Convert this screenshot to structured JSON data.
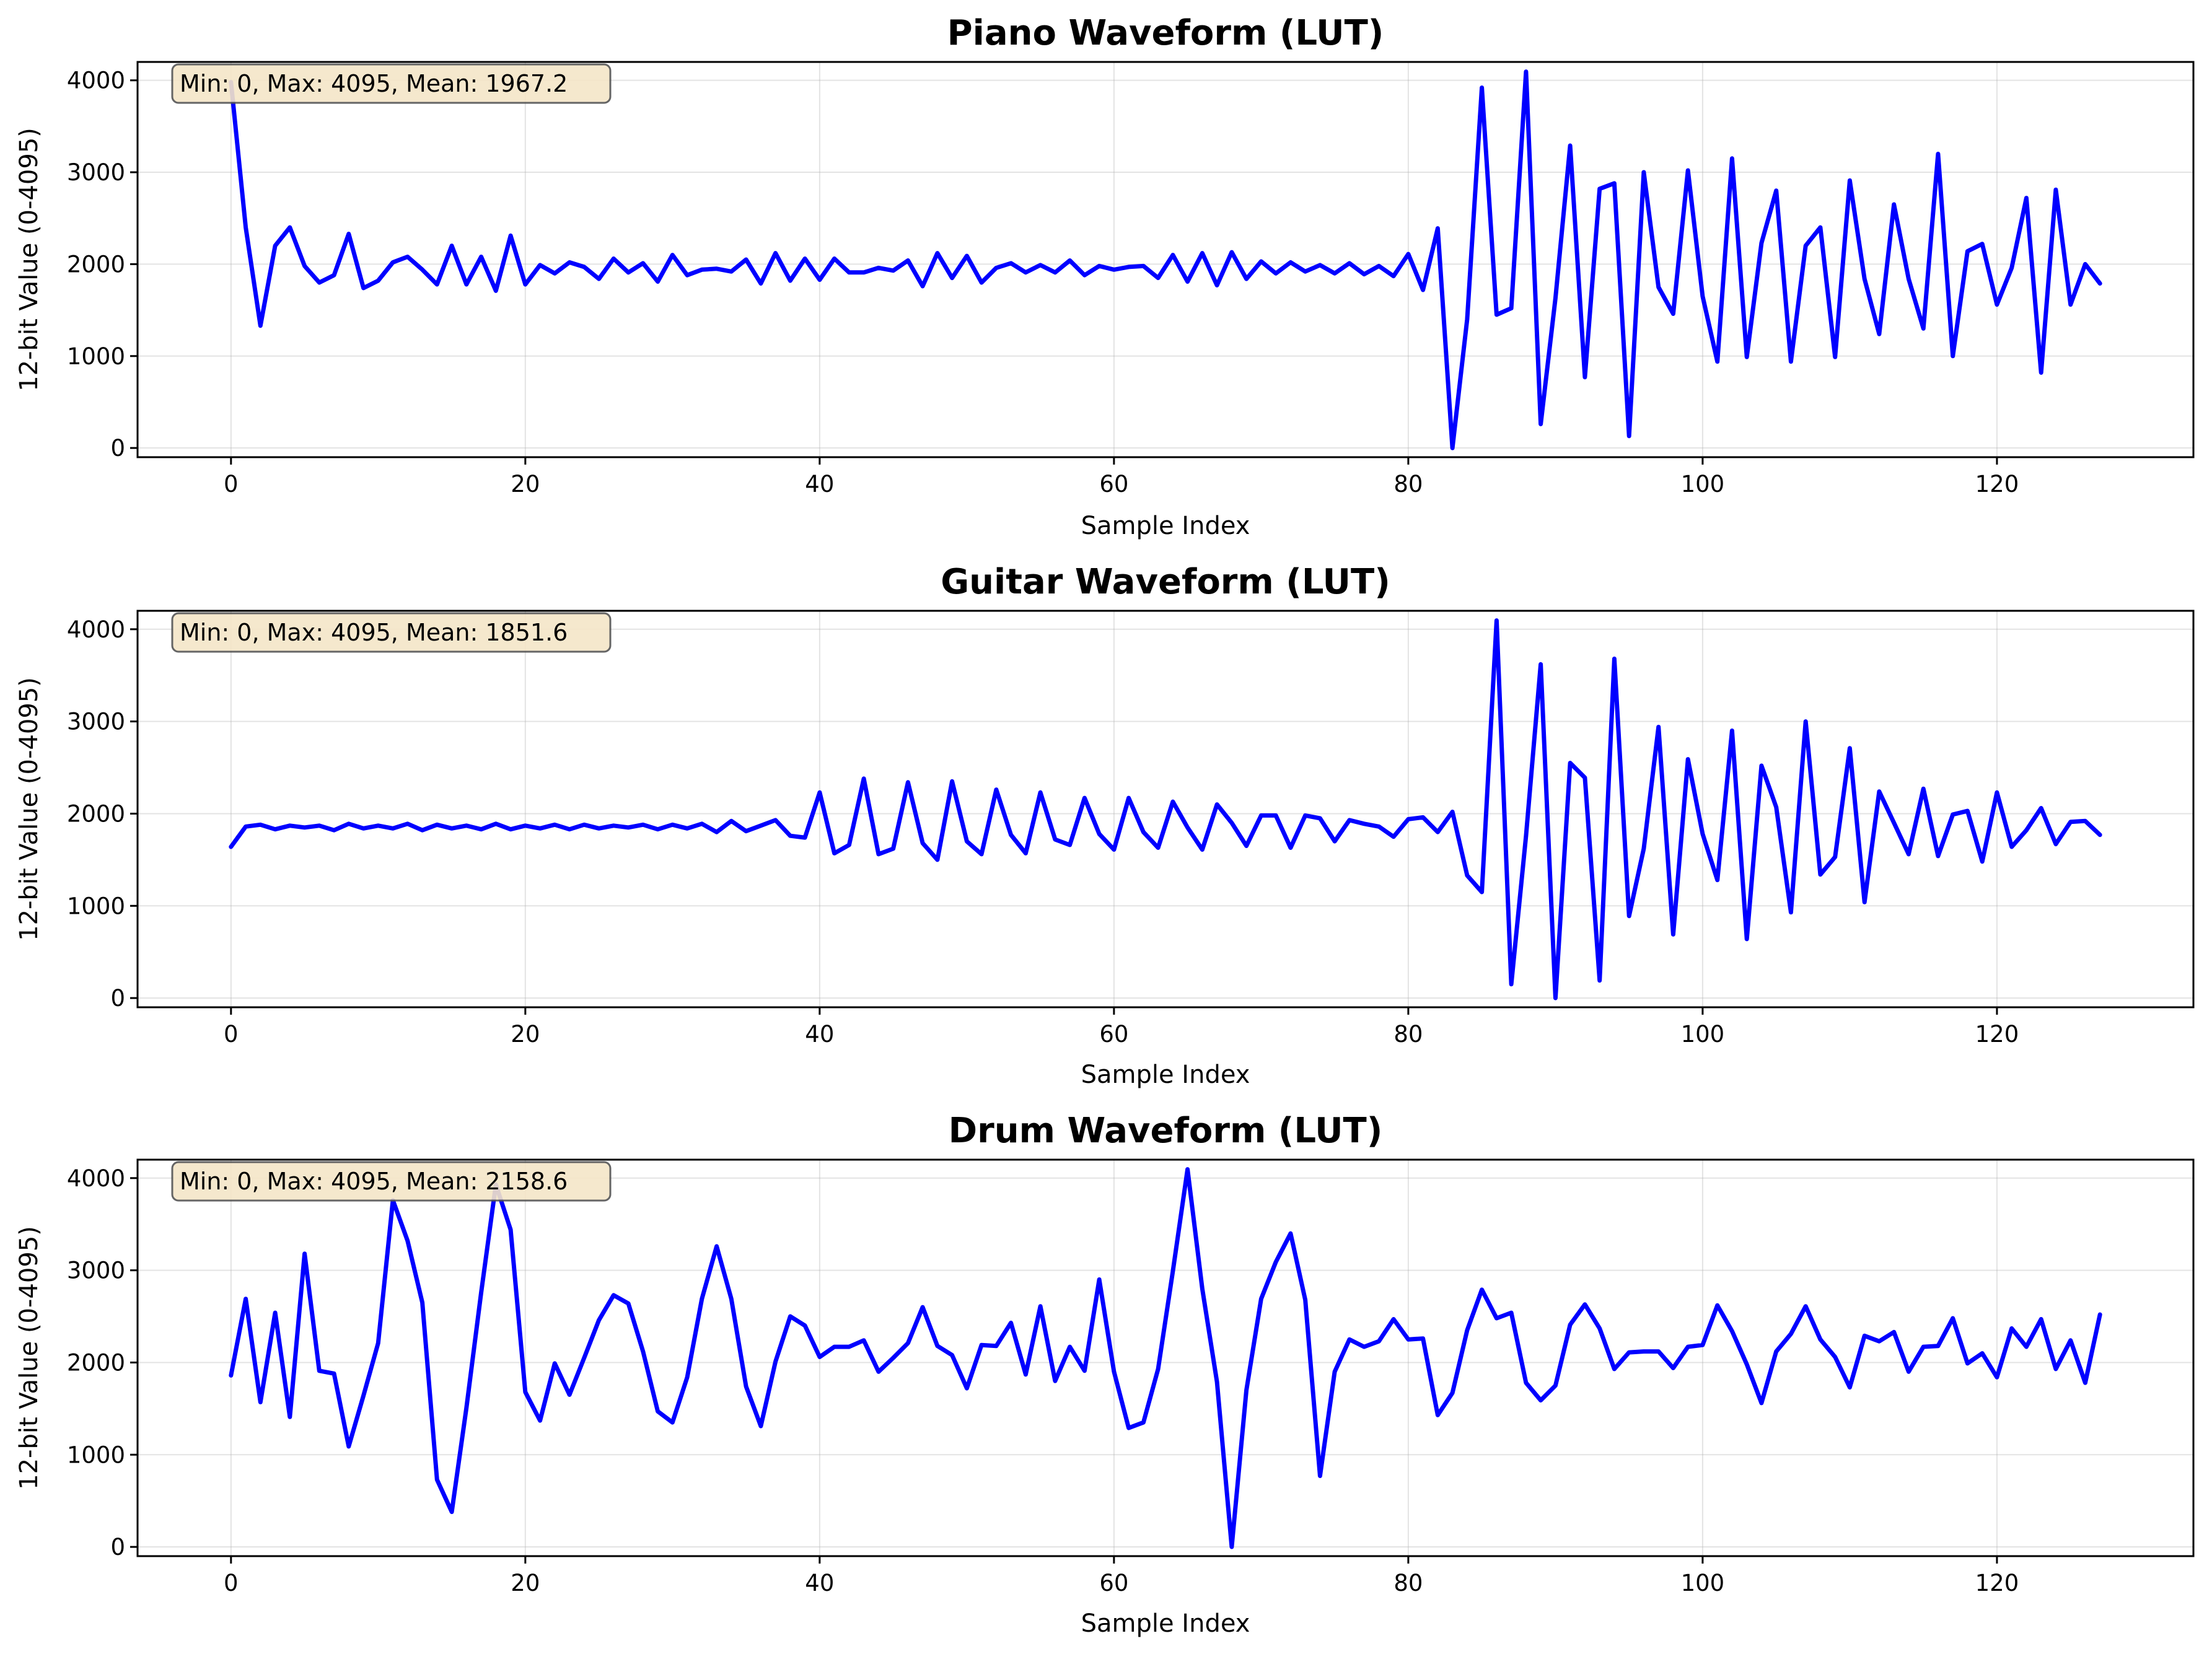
{
  "chart_data": [
    {
      "type": "line",
      "title": "Piano Waveform (LUT)",
      "xlabel": "Sample Index",
      "ylabel": "12-bit Value (0-4095)",
      "xlim": [
        -6.35,
        133.35
      ],
      "ylim": [
        -100,
        4200
      ],
      "xticks": [
        0,
        20,
        40,
        60,
        80,
        100,
        120
      ],
      "yticks": [
        0,
        1000,
        2000,
        3000,
        4000
      ],
      "grid": true,
      "stats_text": "Min: 0, Max: 4095, Mean: 1967.2",
      "stats_position": "top-left",
      "line_color": "#0000ff",
      "stats_box_color": "#f5e6c8",
      "series": [
        {
          "x_start": 0,
          "values": [
            3980,
            2400,
            1330,
            2200,
            2400,
            1980,
            1800,
            1880,
            2330,
            1740,
            1820,
            2020,
            2080,
            1940,
            1780,
            2200,
            1780,
            2080,
            1710,
            2310,
            1780,
            1990,
            1900,
            2020,
            1970,
            1840,
            2060,
            1910,
            2010,
            1810,
            2100,
            1880,
            1940,
            1950,
            1920,
            2050,
            1790,
            2120,
            1820,
            2060,
            1830,
            2060,
            1910,
            1910,
            1960,
            1930,
            2040,
            1760,
            2120,
            1850,
            2090,
            1800,
            1960,
            2010,
            1910,
            1990,
            1910,
            2040,
            1880,
            1980,
            1940,
            1970,
            1980,
            1850,
            2100,
            1810,
            2120,
            1770,
            2130,
            1840,
            2030,
            1900,
            2020,
            1920,
            1990,
            1900,
            2010,
            1890,
            1980,
            1870,
            2110,
            1720,
            2390,
            0,
            1400,
            3920,
            1450,
            1520,
            4095,
            260,
            1630,
            3290,
            770,
            2820,
            2880,
            130,
            3000,
            1750,
            1460,
            3020,
            1650,
            940,
            3150,
            990,
            2230,
            2800,
            940,
            2200,
            2400,
            990,
            2910,
            1840,
            1240,
            2650,
            1840,
            1300,
            3200,
            1000,
            2140,
            2220,
            1560,
            1960,
            2720,
            820,
            2810,
            1560,
            2000,
            1790
          ]
        }
      ]
    },
    {
      "type": "line",
      "title": "Guitar Waveform (LUT)",
      "xlabel": "Sample Index",
      "ylabel": "12-bit Value (0-4095)",
      "xlim": [
        -6.35,
        133.35
      ],
      "ylim": [
        -100,
        4200
      ],
      "xticks": [
        0,
        20,
        40,
        60,
        80,
        100,
        120
      ],
      "yticks": [
        0,
        1000,
        2000,
        3000,
        4000
      ],
      "grid": true,
      "stats_text": "Min: 0, Max: 4095, Mean: 1851.6",
      "stats_position": "top-left",
      "line_color": "#0000ff",
      "stats_box_color": "#f5e6c8",
      "series": [
        {
          "x_start": 0,
          "values": [
            1640,
            1860,
            1880,
            1830,
            1870,
            1850,
            1870,
            1820,
            1890,
            1840,
            1870,
            1840,
            1890,
            1820,
            1880,
            1840,
            1870,
            1830,
            1890,
            1830,
            1870,
            1840,
            1880,
            1830,
            1880,
            1840,
            1870,
            1850,
            1880,
            1830,
            1880,
            1840,
            1890,
            1800,
            1920,
            1810,
            1870,
            1930,
            1760,
            1740,
            2230,
            1570,
            1660,
            2380,
            1560,
            1620,
            2340,
            1680,
            1500,
            2350,
            1700,
            1560,
            2260,
            1770,
            1570,
            2230,
            1720,
            1660,
            2170,
            1780,
            1610,
            2170,
            1800,
            1630,
            2130,
            1850,
            1610,
            2100,
            1900,
            1650,
            1980,
            1980,
            1630,
            1980,
            1950,
            1700,
            1930,
            1890,
            1860,
            1750,
            1940,
            1960,
            1800,
            2020,
            1330,
            1150,
            4095,
            150,
            1760,
            3620,
            0,
            2550,
            2390,
            190,
            3680,
            890,
            1620,
            2940,
            690,
            2590,
            1780,
            1280,
            2900,
            640,
            2520,
            2070,
            930,
            3000,
            1340,
            1530,
            2710,
            1040,
            2240,
            1900,
            1560,
            2270,
            1540,
            1990,
            2030,
            1480,
            2230,
            1640,
            1820,
            2060,
            1670,
            1910,
            1920,
            1770
          ]
        }
      ]
    },
    {
      "type": "line",
      "title": "Drum Waveform (LUT)",
      "xlabel": "Sample Index",
      "ylabel": "12-bit Value (0-4095)",
      "xlim": [
        -6.35,
        133.35
      ],
      "ylim": [
        -100,
        4200
      ],
      "xticks": [
        0,
        20,
        40,
        60,
        80,
        100,
        120
      ],
      "yticks": [
        0,
        1000,
        2000,
        3000,
        4000
      ],
      "grid": true,
      "stats_text": "Min: 0, Max: 4095, Mean: 2158.6",
      "stats_position": "top-left",
      "line_color": "#0000ff",
      "stats_box_color": "#f5e6c8",
      "series": [
        {
          "x_start": 0,
          "values": [
            1860,
            2690,
            1570,
            2540,
            1410,
            3180,
            1910,
            1880,
            1090,
            1640,
            2210,
            3760,
            3320,
            2650,
            730,
            380,
            1510,
            2760,
            3930,
            3440,
            1680,
            1370,
            1990,
            1650,
            2050,
            2460,
            2730,
            2640,
            2120,
            1470,
            1350,
            1840,
            2690,
            3260,
            2690,
            1740,
            1310,
            2010,
            2500,
            2400,
            2060,
            2170,
            2170,
            2240,
            1900,
            2050,
            2210,
            2600,
            2180,
            2080,
            1720,
            2190,
            2180,
            2430,
            1870,
            2610,
            1800,
            2170,
            1910,
            2900,
            1900,
            1290,
            1350,
            1930,
            2990,
            4095,
            2800,
            1790,
            0,
            1700,
            2690,
            3090,
            3400,
            2680,
            770,
            1900,
            2250,
            2170,
            2230,
            2470,
            2250,
            2260,
            1430,
            1670,
            2350,
            2790,
            2480,
            2540,
            1780,
            1590,
            1750,
            2410,
            2630,
            2370,
            1930,
            2110,
            2120,
            2120,
            1940,
            2170,
            2190,
            2620,
            2340,
            1980,
            1560,
            2120,
            2310,
            2610,
            2250,
            2060,
            1730,
            2290,
            2230,
            2330,
            1900,
            2170,
            2180,
            2480,
            1990,
            2100,
            1840,
            2370,
            2170,
            2470,
            1930,
            2240,
            1780,
            2520
          ]
        }
      ]
    }
  ]
}
